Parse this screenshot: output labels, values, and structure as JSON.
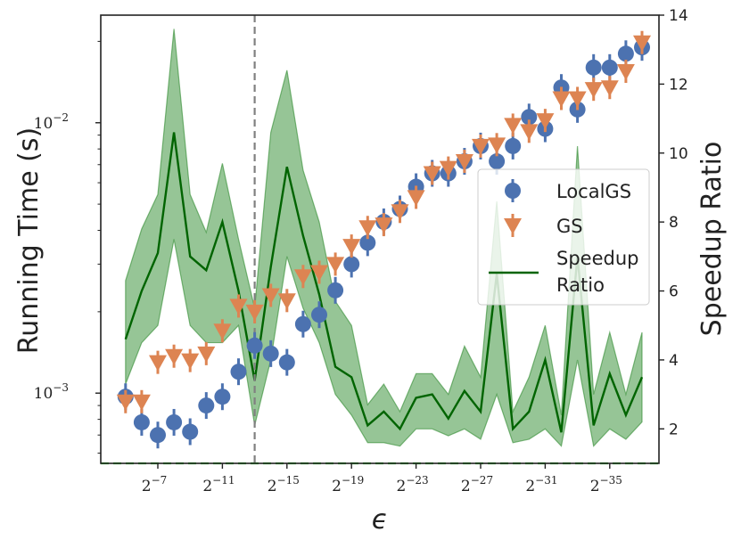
{
  "chart_data": {
    "type": "scatter",
    "xlabel": "ϵ",
    "ylabel": "Running Time (s)",
    "y2label": "Speedup Ratio",
    "x_exponents": [
      -5,
      -6,
      -7,
      -8,
      -9,
      -10,
      -11,
      -12,
      -13,
      -14,
      -15,
      -16,
      -17,
      -18,
      -19,
      -20,
      -21,
      -22,
      -23,
      -24,
      -25,
      -26,
      -27,
      -28,
      -29,
      -30,
      -31,
      -32,
      -33,
      -34,
      -35,
      -36,
      -37
    ],
    "x_ticks": [
      {
        "exp": -7,
        "base": "2",
        "sup": "−7"
      },
      {
        "exp": -11,
        "base": "2",
        "sup": "−11"
      },
      {
        "exp": -15,
        "base": "2",
        "sup": "−15"
      },
      {
        "exp": -19,
        "base": "2",
        "sup": "−19"
      },
      {
        "exp": -23,
        "base": "2",
        "sup": "−23"
      },
      {
        "exp": -27,
        "base": "2",
        "sup": "−27"
      },
      {
        "exp": -31,
        "base": "2",
        "sup": "−31"
      },
      {
        "exp": -35,
        "base": "2",
        "sup": "−35"
      }
    ],
    "y_ticks": [
      {
        "value": 0.01,
        "base": "10",
        "sup": "−2"
      },
      {
        "value": 0.001,
        "base": "10",
        "sup": "−3"
      }
    ],
    "y_lim": [
      0.00055,
      0.025
    ],
    "y2_ticks": [
      "2",
      "4",
      "6",
      "8",
      "10",
      "12",
      "14"
    ],
    "y2_lim": [
      1,
      14
    ],
    "vline_exp": -13,
    "hline_ratio": 1.0,
    "series": [
      {
        "name": "LocalGS",
        "marker": "circle",
        "color": "#4c72b0",
        "values": [
          0.00097,
          0.00078,
          0.0007,
          0.00078,
          0.00072,
          0.0009,
          0.00097,
          0.0012,
          0.0015,
          0.0014,
          0.0013,
          0.0018,
          0.00195,
          0.0024,
          0.003,
          0.0036,
          0.0043,
          0.0048,
          0.0058,
          0.0065,
          0.0065,
          0.0072,
          0.0082,
          0.0072,
          0.0082,
          0.0105,
          0.0095,
          0.0135,
          0.0112,
          0.016,
          0.016,
          0.018,
          0.019
        ]
      },
      {
        "name": "GS",
        "marker": "triangle_down",
        "color": "#dd8452",
        "values": [
          0.00093,
          0.00093,
          0.0013,
          0.00137,
          0.00132,
          0.0014,
          0.0017,
          0.0021,
          0.002,
          0.0023,
          0.0022,
          0.0027,
          0.0028,
          0.003,
          0.0035,
          0.0041,
          0.0042,
          0.0047,
          0.0053,
          0.0065,
          0.0068,
          0.0072,
          0.0082,
          0.0083,
          0.0098,
          0.0093,
          0.0102,
          0.0123,
          0.0123,
          0.0133,
          0.0135,
          0.0155,
          0.0198
        ]
      },
      {
        "name": "Speedup Ratio",
        "axis": "right",
        "color": "#006400",
        "fill": "#2e8b2e",
        "values": [
          4.6,
          6.0,
          7.1,
          10.6,
          7.0,
          6.6,
          8.0,
          6.0,
          3.4,
          6.7,
          9.6,
          7.6,
          5.9,
          3.8,
          3.5,
          2.1,
          2.5,
          2.0,
          2.9,
          3.0,
          2.3,
          3.1,
          2.5,
          6.5,
          2.0,
          2.5,
          4.0,
          1.9,
          7.0,
          2.1,
          3.6,
          2.4,
          3.5
        ],
        "lower": [
          3.3,
          4.5,
          5.0,
          7.5,
          5.0,
          4.5,
          4.5,
          5.0,
          2.1,
          4.0,
          7.0,
          5.5,
          4.5,
          3.0,
          2.4,
          1.6,
          1.6,
          1.5,
          2.0,
          2.0,
          1.8,
          2.0,
          1.7,
          3.0,
          1.6,
          1.7,
          2.0,
          1.5,
          4.0,
          1.5,
          2.0,
          1.7,
          2.2
        ],
        "upper": [
          6.3,
          7.8,
          8.8,
          13.6,
          8.8,
          7.7,
          9.7,
          7.5,
          5.5,
          10.6,
          12.4,
          9.5,
          8.0,
          5.7,
          5.0,
          2.7,
          3.3,
          2.5,
          3.6,
          3.6,
          3.0,
          4.4,
          3.5,
          8.6,
          2.5,
          3.5,
          5.0,
          2.4,
          10.2,
          3.0,
          4.8,
          3.0,
          4.8
        ]
      }
    ],
    "legend": {
      "position": "center-right",
      "entries": [
        "LocalGS",
        "GS",
        "Speedup",
        "Ratio"
      ]
    }
  }
}
